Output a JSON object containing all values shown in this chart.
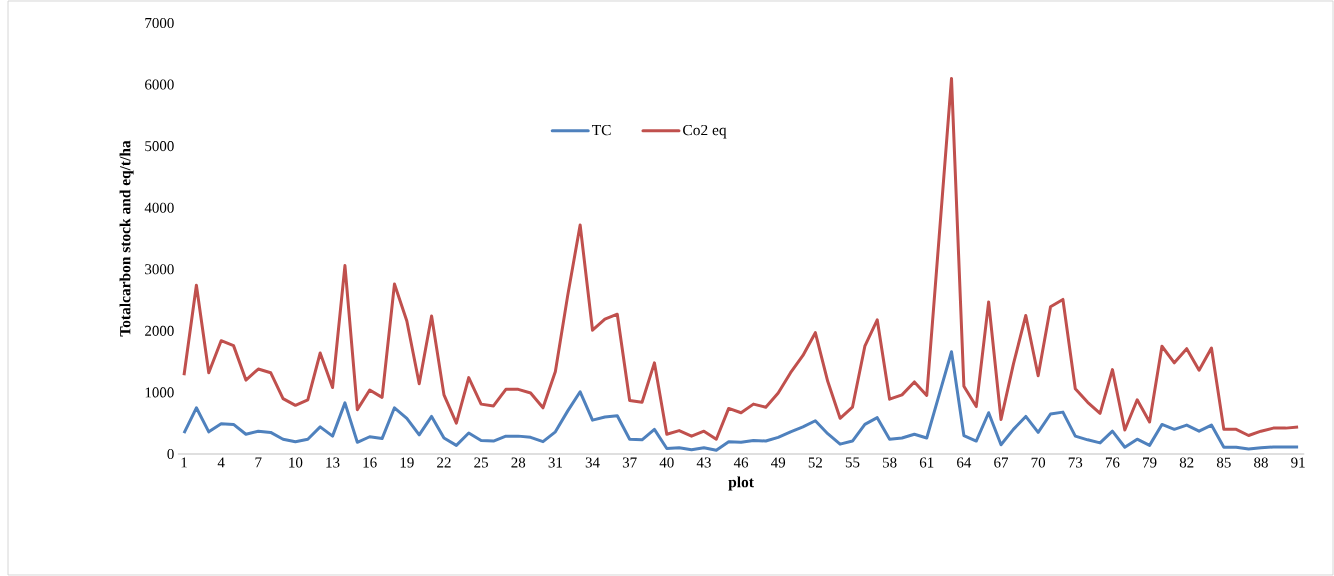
{
  "chart_data": {
    "type": "line",
    "xlabel": "plot",
    "ylabel": "Totalcarbon stock and eq/t/ha",
    "categories": [
      "1",
      null,
      null,
      "4",
      null,
      null,
      "7",
      null,
      null,
      "10",
      null,
      null,
      "13",
      null,
      null,
      "16",
      null,
      null,
      "19",
      null,
      null,
      "22",
      null,
      null,
      "25",
      null,
      null,
      "28",
      null,
      null,
      "31",
      null,
      null,
      "34",
      null,
      null,
      "37",
      null,
      null,
      "40",
      null,
      null,
      "43",
      null,
      null,
      "46",
      null,
      null,
      "49",
      null,
      null,
      "52",
      null,
      null,
      "55",
      null,
      null,
      "58",
      null,
      null,
      "61",
      null,
      null,
      "64",
      null,
      null,
      "67",
      null,
      null,
      "70",
      null,
      null,
      "73",
      null,
      null,
      "76",
      null,
      null,
      "79",
      null,
      null,
      "82",
      null,
      null,
      "85",
      null,
      null,
      "88",
      null,
      null,
      "91"
    ],
    "series": [
      {
        "name": "TC",
        "color": "#4f81bd",
        "values": [
          340,
          750,
          360,
          490,
          480,
          320,
          370,
          350,
          240,
          200,
          240,
          440,
          290,
          830,
          190,
          280,
          250,
          750,
          580,
          310,
          610,
          260,
          140,
          340,
          220,
          210,
          290,
          290,
          270,
          200,
          360,
          700,
          1010,
          550,
          600,
          620,
          240,
          230,
          400,
          90,
          100,
          70,
          100,
          60,
          200,
          190,
          220,
          210,
          270,
          360,
          440,
          540,
          330,
          160,
          210,
          480,
          590,
          240,
          260,
          320,
          260,
          960,
          1660,
          300,
          210,
          670,
          150,
          400,
          610,
          350,
          650,
          680,
          290,
          230,
          180,
          370,
          110,
          240,
          140,
          480,
          400,
          470,
          370,
          470,
          110,
          110,
          80,
          100,
          115,
          115,
          115
        ]
      },
      {
        "name": "Co2  eq",
        "color": "#c0504d",
        "values": [
          1280,
          2740,
          1320,
          1840,
          1760,
          1200,
          1380,
          1320,
          900,
          790,
          880,
          1640,
          1080,
          3060,
          720,
          1040,
          920,
          2760,
          2160,
          1140,
          2240,
          960,
          500,
          1240,
          810,
          780,
          1050,
          1050,
          990,
          750,
          1340,
          2580,
          3720,
          2010,
          2190,
          2270,
          870,
          840,
          1480,
          320,
          380,
          290,
          370,
          240,
          740,
          670,
          810,
          760,
          990,
          1320,
          1600,
          1970,
          1180,
          580,
          760,
          1750,
          2180,
          890,
          960,
          1170,
          950,
          3520,
          6100,
          1100,
          770,
          2470,
          560,
          1460,
          2250,
          1270,
          2390,
          2510,
          1060,
          840,
          660,
          1370,
          390,
          880,
          520,
          1750,
          1480,
          1710,
          1360,
          1720,
          400,
          400,
          300,
          370,
          420,
          420,
          440
        ]
      }
    ],
    "ylim": [
      0,
      7000
    ],
    "yticks": [
      0,
      1000,
      2000,
      3000,
      4000,
      5000,
      6000,
      7000
    ],
    "grid": false,
    "legend": "top",
    "marker": "none",
    "line_style": "solid"
  }
}
